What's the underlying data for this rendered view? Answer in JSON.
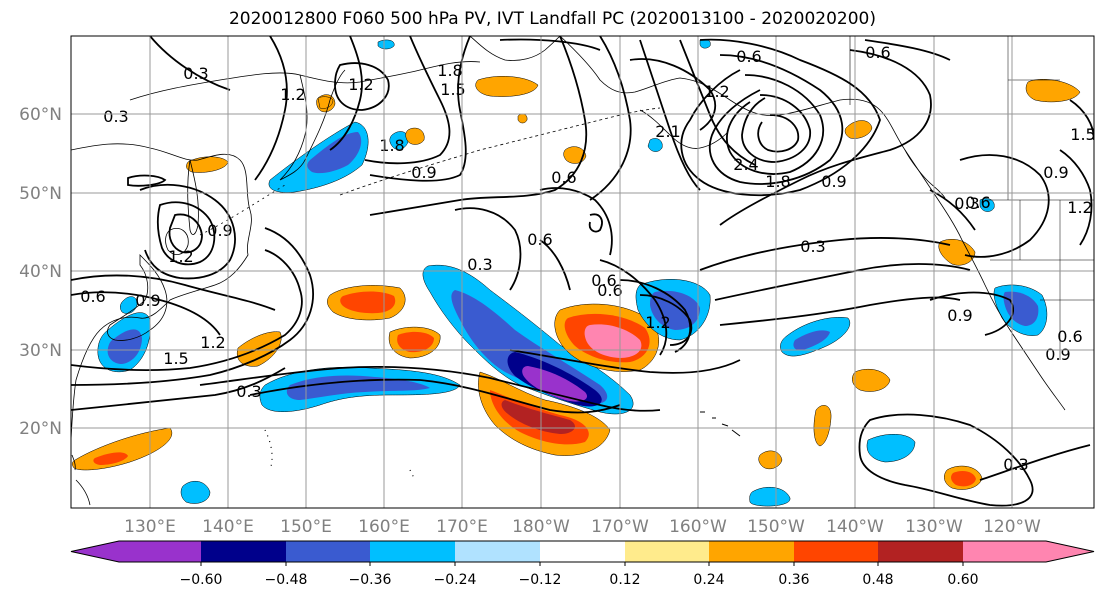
{
  "title": "2020012800 F060 500 hPa PV, IVT Landfall PC (2020013100 - 2020020200)",
  "lat_labels": [
    "60°N",
    "50°N",
    "40°N",
    "30°N",
    "20°N"
  ],
  "lon_labels": [
    "130°E",
    "140°E",
    "150°E",
    "160°E",
    "170°E",
    "180°W",
    "170°W",
    "160°W",
    "150°W",
    "140°W",
    "130°W",
    "120°W"
  ],
  "colorbar": {
    "colors": [
      "#9932cc",
      "#00008b",
      "#3a5bd0",
      "#00bfff",
      "#b0e2ff",
      "#ffffff",
      "#ffeb8c",
      "#ffa500",
      "#ff4500",
      "#b22222",
      "#ff85b0"
    ],
    "tick_labels": [
      "−0.60",
      "−0.48",
      "−0.36",
      "−0.24",
      "−0.12",
      "0.12",
      "0.24",
      "0.36",
      "0.48",
      "0.60"
    ]
  },
  "contour_labels": [
    "0.3",
    "1.2",
    "1.2",
    "1.8",
    "1.5",
    "1.8",
    "0.9",
    "0.6",
    "0.9",
    "0.6",
    "0.3",
    "0.6",
    "2.1",
    "1.2",
    "0.6",
    "2.4",
    "1.8",
    "0.9",
    "0.6",
    "0.3",
    "0.3",
    "0.6",
    "0.9",
    "1.5",
    "1.2",
    "0.9",
    "0.9",
    "1.2",
    "0.6",
    "0.9",
    "1.5",
    "1.2",
    "0.3",
    "0.6",
    "1.2",
    "0.3",
    "0.6",
    "0.3"
  ]
}
